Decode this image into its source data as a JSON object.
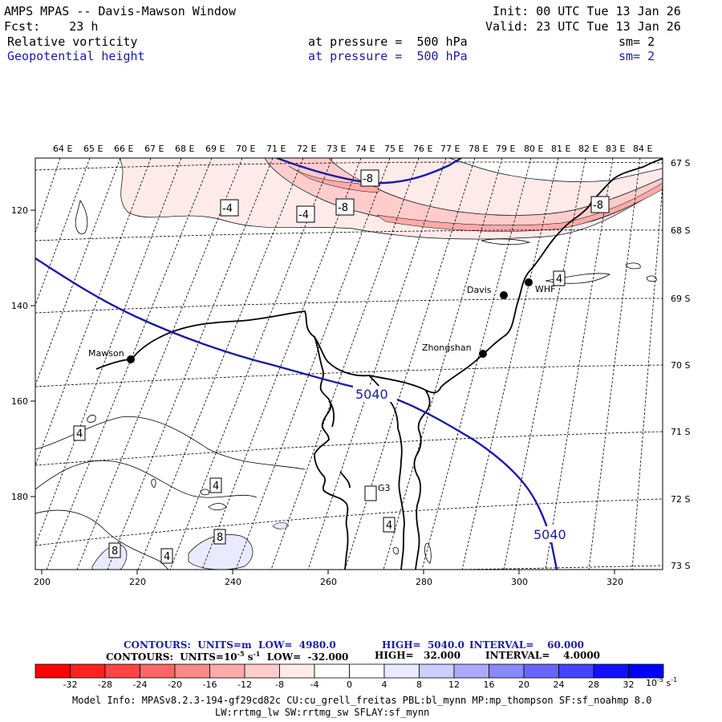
{
  "header": {
    "title": "AMPS MPAS -- Davis-Mawson Window",
    "init": "Init: 00 UTC Tue 13 Jan 26",
    "forecast": "Fcst:    23 h",
    "valid": "Valid: 23 UTC Tue 13 Jan 26",
    "field1": {
      "name": "Relative vorticity",
      "level": "at pressure =  500 hPa",
      "smooth": "sm= 2"
    },
    "field2": {
      "name": "Geopotential height",
      "level": "at pressure =  500 hPa",
      "smooth": "sm= 2"
    }
  },
  "map": {
    "lon_labels": [
      "64 E",
      "65 E",
      "66 E",
      "67 E",
      "68 E",
      "69 E",
      "70 E",
      "71 E",
      "72 E",
      "73 E",
      "74 E",
      "75 E",
      "76 E",
      "77 E",
      "78 E",
      "79 E",
      "80 E",
      "81 E",
      "82 E",
      "83 E",
      "84 E"
    ],
    "lat_labels": [
      "67 S",
      "68 S",
      "69 S",
      "70 S",
      "71 S",
      "72 S",
      "73 S"
    ],
    "x_ticks": [
      "200",
      "220",
      "240",
      "260",
      "280",
      "300",
      "320"
    ],
    "y_ticks": [
      "120",
      "140",
      "160",
      "180"
    ],
    "stations": [
      {
        "name": "Mawson"
      },
      {
        "name": "Davis"
      },
      {
        "name": "WHF"
      },
      {
        "name": "Zhongshan"
      },
      {
        "name": "G3"
      }
    ],
    "height_labels": [
      "5040",
      "5040"
    ],
    "vort_labels": [
      "-4",
      "-4",
      "-8",
      "-8",
      "-8",
      "4",
      "4",
      "4",
      "4",
      "8",
      "8"
    ]
  },
  "legend": {
    "line1_units": "CONTOURS:  UNITS=m  LOW=  4980.0",
    "line1_high": "HIGH=  5040.0",
    "line1_interval": "INTERVAL=    60.000",
    "line2_units": "CONTOURS:  UNITS=10",
    "line2_exp": "-5",
    "line2_s": " s",
    "line2_sexp": "-1",
    "line2_low": "  LOW=  -32.000",
    "line2_high": "HIGH=   32.000",
    "line2_interval": "INTERVAL=    4.0000",
    "color_ticks": [
      "-32",
      "-28",
      "-24",
      "-20",
      "-16",
      "-12",
      "-8",
      "-4",
      "0",
      "4",
      "8",
      "12",
      "16",
      "20",
      "24",
      "28",
      "32"
    ],
    "unit": "10",
    "unit_exp": "-5",
    "unit_s": "s",
    "unit_sexp": "-1",
    "colors": [
      "#ff0000",
      "#ff2222",
      "#ff4444",
      "#ff6666",
      "#ff8888",
      "#ffaaaa",
      "#ffcccc",
      "#ffeaea",
      "#ffffff",
      "#ffffff",
      "#eaeaff",
      "#ccccff",
      "#aaaaff",
      "#8888ff",
      "#6666ff",
      "#4444ff",
      "#1111ff",
      "#0000ff"
    ]
  },
  "footer": {
    "line1": "Model Info: MPASv8.2.3-194-gf29cd82c CU:cu_grell_freitas PBL:bl_mynn MP:mp_thompson SF:sf_noahmp 8.0",
    "line2": "LW:rrtmg_lw SW:rrtmg_sw SFLAY:sf_mynn"
  }
}
